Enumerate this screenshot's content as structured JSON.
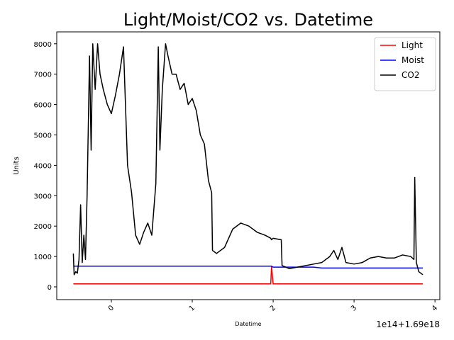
{
  "chart_data": {
    "type": "line",
    "title": "Light/Moist/CO2 vs. Datetime",
    "xlabel": "Datetime",
    "ylabel": "Units",
    "x_offset_text": "1e14+1.69e18",
    "x": [
      -0.47,
      -0.46,
      -0.44,
      -0.42,
      -0.4,
      -0.38,
      -0.36,
      -0.34,
      -0.32,
      -0.3,
      -0.27,
      -0.25,
      -0.23,
      -0.2,
      -0.17,
      -0.14,
      -0.1,
      -0.05,
      0.0,
      0.05,
      0.1,
      0.15,
      0.2,
      0.25,
      0.3,
      0.35,
      0.4,
      0.45,
      0.5,
      0.55,
      0.58,
      0.6,
      0.63,
      0.67,
      0.7,
      0.75,
      0.8,
      0.85,
      0.9,
      0.95,
      1.0,
      1.05,
      1.1,
      1.15,
      1.2,
      1.24,
      1.25,
      1.3,
      1.4,
      1.5,
      1.6,
      1.7,
      1.8,
      1.9,
      1.97,
      1.98,
      2.0,
      2.1,
      2.11,
      2.2,
      2.3,
      2.4,
      2.5,
      2.6,
      2.7,
      2.75,
      2.8,
      2.85,
      2.9,
      3.0,
      3.1,
      3.2,
      3.3,
      3.4,
      3.5,
      3.6,
      3.7,
      3.74,
      3.75,
      3.77,
      3.8,
      3.85
    ],
    "series": [
      {
        "name": "Light",
        "color": "#ff0000",
        "values": [
          100,
          100,
          100,
          100,
          100,
          100,
          100,
          100,
          100,
          100,
          100,
          100,
          100,
          100,
          100,
          100,
          100,
          100,
          100,
          100,
          100,
          100,
          100,
          100,
          100,
          100,
          100,
          100,
          100,
          100,
          100,
          100,
          100,
          100,
          100,
          100,
          100,
          100,
          100,
          100,
          100,
          100,
          100,
          100,
          100,
          100,
          100,
          100,
          100,
          100,
          100,
          100,
          100,
          100,
          100,
          680,
          100,
          100,
          100,
          100,
          100,
          100,
          100,
          100,
          100,
          100,
          100,
          100,
          100,
          100,
          100,
          100,
          100,
          100,
          100,
          100,
          100,
          100,
          100,
          100,
          100,
          100
        ]
      },
      {
        "name": "Moist",
        "color": "#0000ff",
        "values": [
          680,
          680,
          680,
          680,
          680,
          680,
          680,
          680,
          680,
          680,
          680,
          680,
          680,
          680,
          680,
          680,
          680,
          680,
          680,
          680,
          680,
          680,
          680,
          680,
          680,
          680,
          680,
          680,
          680,
          680,
          680,
          680,
          680,
          680,
          680,
          680,
          680,
          680,
          680,
          680,
          680,
          680,
          680,
          680,
          680,
          680,
          680,
          680,
          680,
          680,
          680,
          680,
          680,
          680,
          680,
          680,
          650,
          650,
          650,
          650,
          650,
          650,
          650,
          620,
          620,
          620,
          620,
          620,
          620,
          620,
          620,
          620,
          620,
          620,
          620,
          620,
          620,
          620,
          620,
          620,
          620,
          620
        ]
      },
      {
        "name": "CO2",
        "color": "#000000",
        "values": [
          1100,
          400,
          500,
          450,
          900,
          2700,
          800,
          1700,
          900,
          3000,
          7600,
          4500,
          8000,
          6500,
          8000,
          7000,
          6500,
          6000,
          5700,
          6300,
          7000,
          7900,
          4000,
          3100,
          1700,
          1400,
          1800,
          2100,
          1700,
          3400,
          7900,
          4500,
          6500,
          8000,
          7600,
          7000,
          7000,
          6500,
          6700,
          6000,
          6200,
          5800,
          5000,
          4700,
          3500,
          3100,
          1200,
          1100,
          1300,
          1900,
          2100,
          2000,
          1800,
          1700,
          1600,
          1550,
          1600,
          1550,
          700,
          600,
          650,
          700,
          750,
          800,
          1000,
          1200,
          900,
          1300,
          800,
          750,
          800,
          950,
          1000,
          950,
          950,
          1050,
          1000,
          900,
          3600,
          800,
          500,
          400
        ]
      }
    ],
    "xlim": [
      -0.675,
      4.06
    ],
    "xticks": [
      0,
      1,
      2,
      3,
      4
    ],
    "ylim": [
      -420,
      8392
    ],
    "yticks": [
      0,
      1000,
      2000,
      3000,
      4000,
      5000,
      6000,
      7000,
      8000
    ],
    "legend": "upper right"
  }
}
